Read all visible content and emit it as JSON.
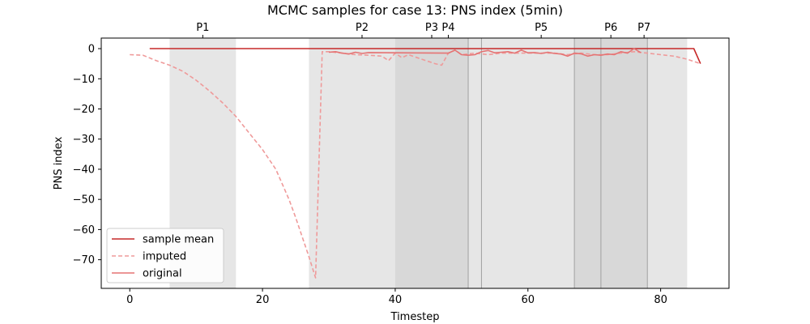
{
  "chart_data": {
    "type": "line",
    "title": "MCMC samples for case 13: PNS index (5min)",
    "xlabel": "Timestep",
    "ylabel": "PNS index",
    "xlim": [
      -4.3,
      90.3
    ],
    "ylim": [
      -79.5,
      3.5
    ],
    "xticks": [
      0,
      20,
      40,
      60,
      80
    ],
    "yticks": [
      0,
      -10,
      -20,
      -30,
      -40,
      -50,
      -60,
      -70
    ],
    "grid": false,
    "legend_position": "lower-left",
    "colors": {
      "mean": "#c62828",
      "imputed": "#ef9a9a",
      "original": "#e57373",
      "region_fill": "#c8c8c8",
      "region_line": "#a0a0a0"
    },
    "regions": [
      {
        "label": "P1",
        "start": 6,
        "end": 16
      },
      {
        "label": "P2",
        "start": 27,
        "end": 43
      },
      {
        "label": "P3",
        "start": 40,
        "end": 51
      },
      {
        "label": "P4",
        "start": 43,
        "end": 53
      },
      {
        "label": "P5",
        "start": 53,
        "end": 71
      },
      {
        "label": "P6",
        "start": 67,
        "end": 78
      },
      {
        "label": "P7",
        "start": 71,
        "end": 84
      }
    ],
    "period_lines": [
      51,
      53,
      67,
      71,
      78
    ],
    "series": [
      {
        "name": "sample mean",
        "style": "solid",
        "x": [
          3,
          85,
          86
        ],
        "y": [
          0,
          0,
          -5
        ]
      },
      {
        "name": "imputed",
        "style": "dashed",
        "x": [
          0,
          2,
          4,
          6,
          8,
          10,
          12,
          14,
          16,
          18,
          20,
          22,
          24,
          25,
          26,
          27,
          28,
          29,
          30,
          32,
          34,
          36,
          38,
          39,
          40,
          41,
          42,
          44,
          46,
          47,
          48,
          49,
          50,
          52,
          54,
          56,
          58,
          60,
          62,
          64,
          66,
          68,
          70,
          72,
          74,
          76,
          78,
          80,
          82,
          84,
          86
        ],
        "y": [
          -2,
          -2.2,
          -4,
          -5.5,
          -7.5,
          -10.5,
          -14,
          -18,
          -22.5,
          -28,
          -33.5,
          -40,
          -50,
          -56,
          -62.5,
          -69,
          -76,
          -1,
          -1,
          -1.5,
          -2,
          -2.2,
          -2.5,
          -4,
          -1.5,
          -3,
          -2,
          -3.5,
          -5,
          -5.5,
          -1.5,
          -0.5,
          -2,
          -1.5,
          -2,
          -1.5,
          -1.5,
          -1.5,
          -1.5,
          -1.5,
          -2,
          -1.5,
          -2,
          -2,
          -1.5,
          -1,
          -1.5,
          -2,
          -2.5,
          -3.5,
          -5
        ]
      },
      {
        "name": "original",
        "style": "solid",
        "x": [
          30,
          31,
          32,
          33,
          34,
          35,
          36,
          48,
          49,
          50,
          51,
          52,
          53,
          54,
          55,
          56,
          57,
          58,
          59,
          60,
          61,
          62,
          63,
          64,
          65,
          66,
          67,
          68,
          69,
          70,
          71,
          72,
          73,
          74,
          75,
          76,
          77
        ],
        "y": [
          -1.2,
          -1,
          -1.5,
          -1.8,
          -1.2,
          -1.6,
          -1.3,
          -1.5,
          -0.5,
          -2,
          -2.2,
          -2,
          -1,
          -0.6,
          -1.4,
          -1.2,
          -1,
          -1.5,
          -0.5,
          -1.4,
          -1.3,
          -1.6,
          -1.2,
          -1.6,
          -1.8,
          -2.5,
          -1.5,
          -1.7,
          -2.5,
          -2,
          -2.2,
          -1.8,
          -2,
          -1,
          -1.5,
          0,
          -1.3
        ]
      }
    ]
  }
}
